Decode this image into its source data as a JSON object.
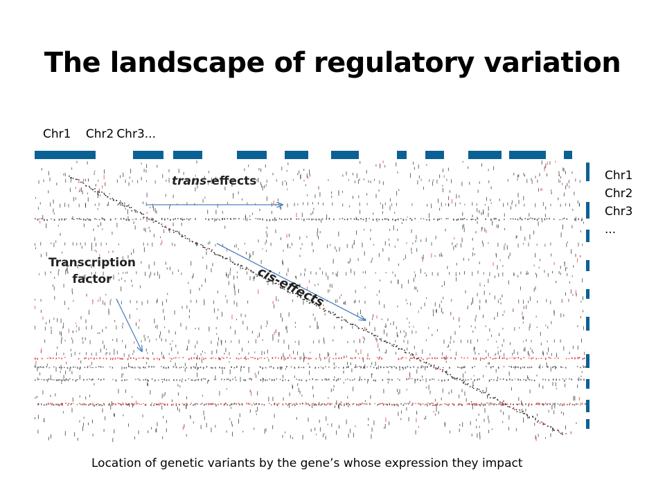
{
  "slide": {
    "title": "The landscape of regulatory variation",
    "column_labels": [
      "Chr1",
      "Chr2",
      "Chr3..."
    ],
    "row_labels": [
      "Chr1",
      "Chr2",
      "Chr3",
      "..."
    ],
    "annotations": {
      "trans_italic": "trans",
      "trans_rest": "-effects",
      "cis": "cis-effects",
      "tf_line1": "Transcription",
      "tf_line2": "factor"
    },
    "footer": "Location of genetic variants by the gene’s whose expression they impact"
  },
  "colors": {
    "chromosome_bar": "#0b6194",
    "arrow": "#4a7fc0",
    "dot_dark": "#333333",
    "dot_red": "#e03030"
  }
}
